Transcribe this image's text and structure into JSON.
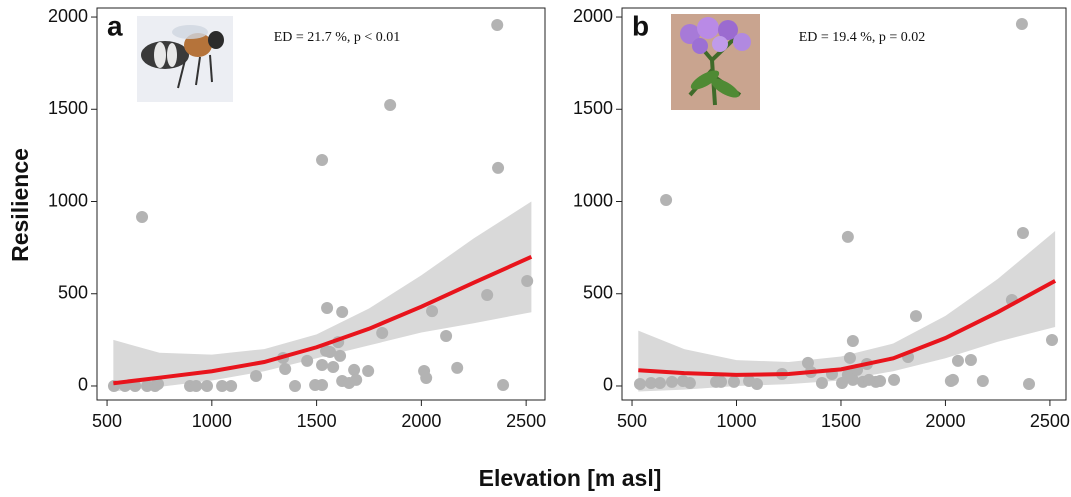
{
  "ylabel": "Resilience",
  "xlabel": "Elevation [m asl]",
  "chart_data": [
    {
      "type": "scatter",
      "panel_label": "a",
      "annotation": "ED = 21.7 %, p < 0.01",
      "color": "#b3b3b3",
      "x": [
        533,
        586,
        634,
        667,
        691,
        729,
        743,
        896,
        925,
        977,
        1049,
        1092,
        1211,
        1340,
        1350,
        1397,
        1455,
        1493,
        1526,
        1526,
        1526,
        1545,
        1550,
        1564,
        1579,
        1603,
        1612,
        1622,
        1622,
        1655,
        1679,
        1689,
        1746,
        1813,
        1851,
        2013,
        2023,
        2051,
        2118,
        2171,
        2314,
        2362,
        2366,
        2390,
        2505
      ],
      "y": [
        0,
        0,
        0,
        916,
        0,
        0,
        11,
        0,
        0,
        0,
        0,
        0,
        54,
        152,
        92,
        0,
        136,
        5,
        1225,
        5,
        114,
        190,
        423,
        184,
        103,
        238,
        163,
        401,
        27,
        16,
        87,
        33,
        81,
        287,
        1523,
        81,
        43,
        406,
        271,
        98,
        493,
        1957,
        1182,
        5,
        569
      ],
      "fit": {
        "color": "#e8141c",
        "band_color": "#d9d9d9",
        "x": [
          530,
          750,
          1000,
          1250,
          1500,
          1750,
          2000,
          2250,
          2525
        ],
        "values": [
          15,
          45,
          80,
          130,
          210,
          310,
          430,
          560,
          700
        ],
        "upper": [
          250,
          180,
          170,
          200,
          280,
          420,
          600,
          800,
          1000
        ],
        "lower": [
          -30,
          -5,
          30,
          80,
          150,
          220,
          290,
          340,
          400
        ]
      },
      "xlim": [
        452,
        2590
      ],
      "ylim": [
        -76,
        2049
      ],
      "xticks": [
        500,
        1000,
        1500,
        2000,
        2500
      ],
      "yticks": [
        0,
        500,
        1000,
        1500,
        2000
      ]
    },
    {
      "type": "scatter",
      "panel_label": "b",
      "annotation": "ED =  19.4 %, p = 0.02",
      "color": "#b3b3b3",
      "x": [
        538,
        591,
        634,
        663,
        691,
        744,
        777,
        902,
        926,
        988,
        1060,
        1098,
        1218,
        1342,
        1356,
        1409,
        1457,
        1505,
        1533,
        1533,
        1543,
        1557,
        1557,
        1577,
        1605,
        1624,
        1634,
        1667,
        1687,
        1754,
        1821,
        1859,
        2026,
        2036,
        2060,
        2122,
        2179,
        2318,
        2366,
        2371,
        2400,
        2510
      ],
      "y": [
        11,
        16,
        16,
        1008,
        22,
        27,
        16,
        22,
        22,
        22,
        27,
        11,
        65,
        125,
        76,
        16,
        65,
        16,
        808,
        60,
        152,
        244,
        33,
        87,
        22,
        119,
        33,
        22,
        27,
        33,
        157,
        379,
        27,
        33,
        136,
        141,
        27,
        466,
        1962,
        829,
        11,
        249
      ],
      "fit": {
        "color": "#e8141c",
        "band_color": "#d9d9d9",
        "x": [
          530,
          750,
          1000,
          1250,
          1500,
          1750,
          2000,
          2250,
          2525
        ],
        "values": [
          85,
          70,
          60,
          65,
          90,
          150,
          260,
          400,
          570
        ],
        "upper": [
          300,
          200,
          140,
          130,
          160,
          230,
          380,
          580,
          840
        ],
        "lower": [
          -30,
          -20,
          0,
          10,
          30,
          80,
          150,
          240,
          320
        ]
      },
      "xlim": [
        452,
        2577
      ],
      "ylim": [
        -76,
        2049
      ],
      "xticks": [
        500,
        1000,
        1500,
        2000,
        2500
      ],
      "yticks": [
        0,
        500,
        1000,
        1500,
        2000
      ]
    }
  ]
}
